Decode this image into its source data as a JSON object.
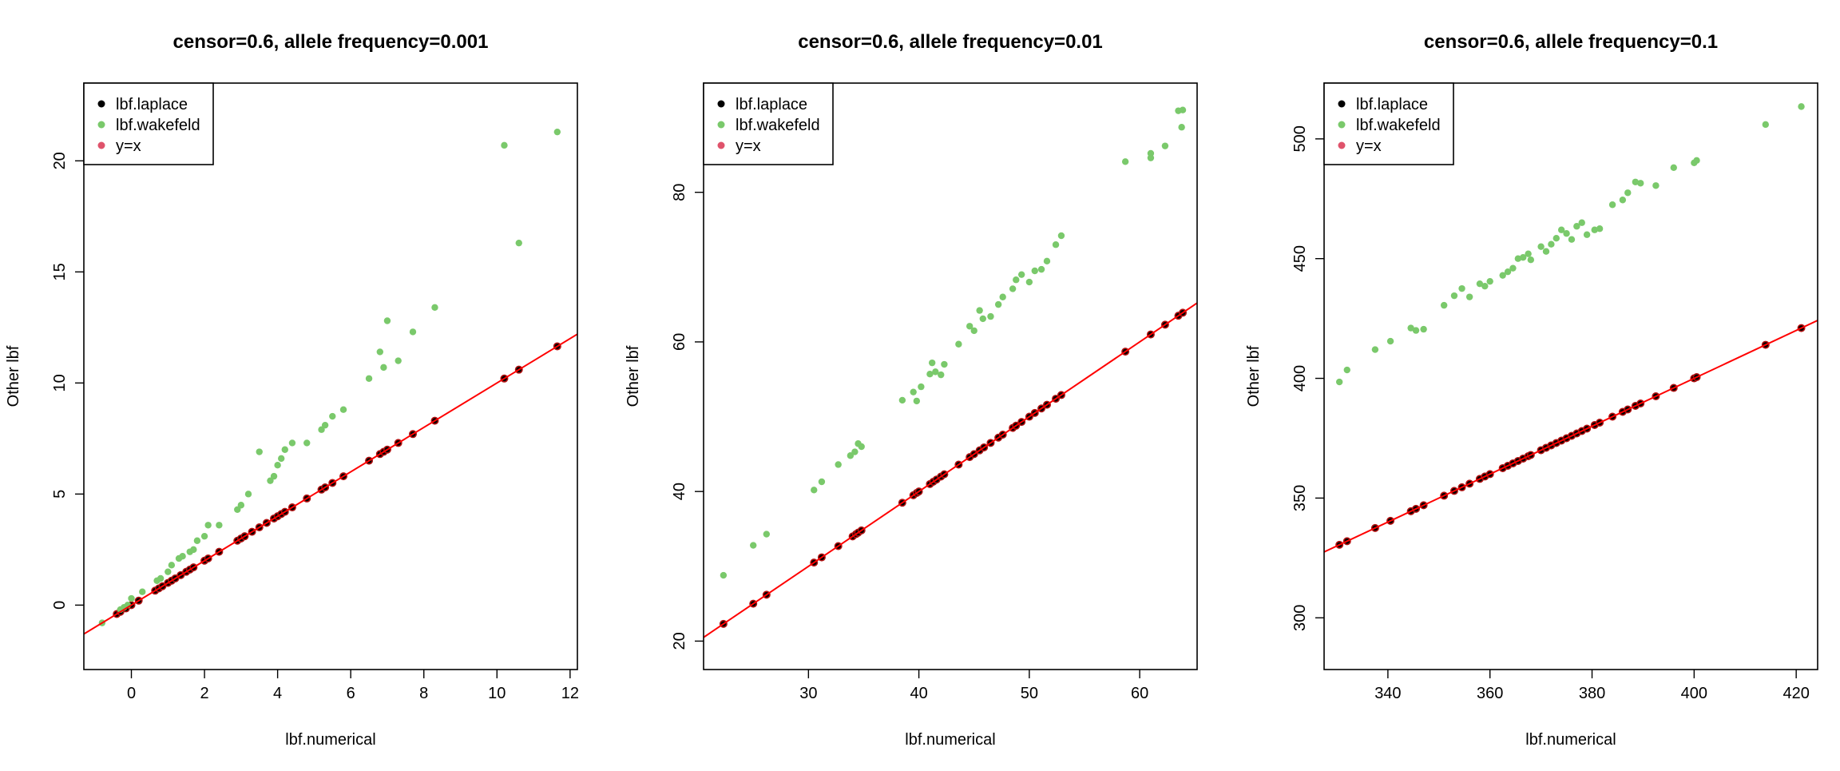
{
  "chart_data": [
    {
      "type": "scatter",
      "title": "censor=0.6, allele frequency=0.001",
      "xlabel": "lbf.numerical",
      "ylabel": "Other lbf",
      "xlim": [
        -1.3,
        12.2
      ],
      "ylim": [
        -2.9,
        23.5
      ],
      "xticks": [
        "0",
        "2",
        "4",
        "6",
        "8",
        "10",
        "12"
      ],
      "yticks": [
        "0",
        "5",
        "10",
        "15",
        "20"
      ],
      "legend": {
        "position": "top-left",
        "entries": [
          "lbf.laplace",
          "lbf.wakefeld",
          "y=x"
        ]
      },
      "line": {
        "name": "y=x",
        "slope": 1,
        "intercept": 0,
        "color": "#ff0000"
      },
      "series": [
        {
          "name": "lbf.laplace",
          "color": "#000000",
          "x": [
            -0.4,
            -0.3,
            -0.15,
            0.0,
            0.2,
            0.65,
            0.75,
            0.85,
            1.0,
            1.1,
            1.2,
            1.35,
            1.5,
            1.6,
            1.7,
            2.0,
            2.1,
            2.4,
            2.9,
            3.0,
            3.1,
            3.3,
            3.5,
            3.7,
            3.9,
            4.0,
            4.1,
            4.2,
            4.4,
            4.8,
            5.2,
            5.3,
            5.5,
            5.8,
            6.5,
            6.8,
            6.9,
            7.0,
            7.3,
            7.7,
            8.3,
            10.2,
            10.6,
            11.65
          ],
          "y": [
            -0.4,
            -0.3,
            -0.15,
            0.0,
            0.2,
            0.65,
            0.75,
            0.85,
            1.0,
            1.1,
            1.2,
            1.35,
            1.5,
            1.6,
            1.7,
            2.0,
            2.1,
            2.4,
            2.9,
            3.0,
            3.1,
            3.3,
            3.5,
            3.7,
            3.9,
            4.0,
            4.1,
            4.2,
            4.4,
            4.8,
            5.2,
            5.3,
            5.5,
            5.8,
            6.5,
            6.8,
            6.9,
            7.0,
            7.3,
            7.7,
            8.3,
            10.2,
            10.6,
            11.65
          ]
        },
        {
          "name": "lbf.wakefeld",
          "color": "#7ac96b",
          "x": [
            -0.8,
            -0.3,
            -0.2,
            -0.1,
            0.0,
            0.3,
            0.7,
            0.8,
            1.0,
            1.1,
            1.3,
            1.4,
            1.6,
            1.7,
            1.8,
            2.0,
            2.1,
            2.4,
            2.9,
            3.0,
            3.2,
            3.5,
            3.8,
            3.9,
            4.0,
            4.1,
            4.2,
            4.4,
            4.8,
            5.2,
            5.3,
            5.5,
            5.8,
            6.5,
            6.8,
            6.9,
            7.0,
            7.3,
            7.7,
            8.3,
            10.2,
            10.6,
            11.65
          ],
          "y": [
            -0.8,
            -0.2,
            -0.1,
            0.0,
            0.3,
            0.6,
            1.1,
            1.2,
            1.5,
            1.8,
            2.1,
            2.2,
            2.4,
            2.5,
            2.9,
            3.1,
            3.6,
            3.6,
            4.3,
            4.5,
            5.0,
            6.9,
            5.6,
            5.8,
            6.3,
            6.6,
            7.0,
            7.3,
            7.3,
            7.9,
            8.1,
            8.5,
            8.8,
            10.2,
            11.4,
            10.7,
            12.8,
            11.0,
            12.3,
            13.4,
            20.7,
            16.3,
            21.3
          ]
        }
      ]
    },
    {
      "type": "scatter",
      "title": "censor=0.6, allele frequency=0.01",
      "xlabel": "lbf.numerical",
      "ylabel": "Other lbf",
      "xlim": [
        20.5,
        65.2
      ],
      "ylim": [
        16.2,
        94.6
      ],
      "xticks": [
        "30",
        "40",
        "50",
        "60"
      ],
      "yticks": [
        "20",
        "40",
        "60",
        "80"
      ],
      "legend": {
        "position": "top-left",
        "entries": [
          "lbf.laplace",
          "lbf.wakefeld",
          "y=x"
        ]
      },
      "line": {
        "name": "y=x",
        "slope": 1,
        "intercept": 0,
        "color": "#ff0000"
      },
      "series": [
        {
          "name": "lbf.laplace",
          "color": "#000000",
          "x": [
            22.3,
            25.0,
            26.2,
            30.5,
            31.2,
            32.7,
            34.0,
            34.3,
            34.5,
            34.8,
            38.5,
            39.5,
            39.8,
            40.0,
            41.0,
            41.3,
            41.6,
            42.0,
            42.3,
            43.6,
            44.6,
            45.0,
            45.5,
            45.9,
            46.5,
            47.2,
            47.6,
            48.5,
            48.8,
            49.3,
            50.0,
            50.5,
            51.1,
            51.6,
            52.4,
            52.9,
            58.7,
            61.0,
            62.3,
            63.5,
            63.9
          ],
          "y": [
            22.3,
            25.0,
            26.2,
            30.5,
            31.2,
            32.7,
            34.0,
            34.3,
            34.5,
            34.8,
            38.5,
            39.5,
            39.8,
            40.0,
            41.0,
            41.3,
            41.6,
            42.0,
            42.3,
            43.6,
            44.6,
            45.0,
            45.5,
            45.9,
            46.5,
            47.2,
            47.6,
            48.5,
            48.8,
            49.3,
            50.0,
            50.5,
            51.1,
            51.6,
            52.4,
            52.9,
            58.7,
            61.0,
            62.3,
            63.5,
            63.9
          ]
        },
        {
          "name": "lbf.wakefeld",
          "color": "#7ac96b",
          "x": [
            22.3,
            25.0,
            26.2,
            30.5,
            31.2,
            32.7,
            33.8,
            34.2,
            34.5,
            34.8,
            38.5,
            39.5,
            39.8,
            40.2,
            41.0,
            41.2,
            41.5,
            42.0,
            42.3,
            43.6,
            44.6,
            45.0,
            45.5,
            45.8,
            46.5,
            47.2,
            47.6,
            48.5,
            48.8,
            49.3,
            50.0,
            50.5,
            51.1,
            51.6,
            52.4,
            52.9,
            58.7,
            61.0,
            61.0,
            62.3,
            63.5,
            63.8,
            63.9
          ],
          "y": [
            28.8,
            32.8,
            34.3,
            40.2,
            41.3,
            43.6,
            44.8,
            45.3,
            46.4,
            46.0,
            52.2,
            53.3,
            52.1,
            54.0,
            55.7,
            57.2,
            56.0,
            55.6,
            57.0,
            59.7,
            62.1,
            61.5,
            64.2,
            63.1,
            63.4,
            65.0,
            66.0,
            67.1,
            68.3,
            69.0,
            68.0,
            69.5,
            69.7,
            70.8,
            73.0,
            74.2,
            84.1,
            84.6,
            85.2,
            86.2,
            90.9,
            88.7,
            91.0
          ]
        }
      ]
    },
    {
      "type": "scatter",
      "title": "censor=0.6, allele frequency=0.1",
      "xlabel": "lbf.numerical",
      "ylabel": "Other lbf",
      "xlim": [
        327.5,
        424.2
      ],
      "ylim": [
        278.4,
        523.3
      ],
      "xticks": [
        "340",
        "360",
        "380",
        "400",
        "420"
      ],
      "yticks": [
        "300",
        "350",
        "400",
        "450",
        "500"
      ],
      "legend": {
        "position": "top-left",
        "entries": [
          "lbf.laplace",
          "lbf.wakefeld",
          "y=x"
        ]
      },
      "line": {
        "name": "y=x",
        "slope": 1,
        "intercept": 0,
        "color": "#ff0000"
      },
      "series": [
        {
          "name": "lbf.laplace",
          "color": "#000000",
          "x": [
            330.5,
            332.0,
            337.5,
            340.5,
            344.5,
            345.5,
            347.0,
            351.0,
            353.0,
            354.5,
            356.0,
            358.0,
            359.0,
            360.0,
            362.5,
            363.5,
            364.5,
            365.5,
            366.5,
            367.5,
            368.0,
            370.0,
            371.0,
            372.0,
            373.0,
            374.0,
            375.0,
            376.0,
            377.0,
            378.0,
            379.0,
            380.5,
            381.5,
            384.0,
            386.0,
            387.0,
            388.5,
            389.5,
            392.5,
            396.0,
            400.0,
            400.5,
            414.0,
            421.0
          ],
          "y": [
            330.5,
            332.0,
            337.5,
            340.5,
            344.5,
            345.5,
            347.0,
            351.0,
            353.0,
            354.5,
            356.0,
            358.0,
            359.0,
            360.0,
            362.5,
            363.5,
            364.5,
            365.5,
            366.5,
            367.5,
            368.0,
            370.0,
            371.0,
            372.0,
            373.0,
            374.0,
            375.0,
            376.0,
            377.0,
            378.0,
            379.0,
            380.5,
            381.5,
            384.0,
            386.0,
            387.0,
            388.5,
            389.5,
            392.5,
            396.0,
            400.0,
            400.5,
            414.0,
            421.0
          ]
        },
        {
          "name": "lbf.wakefeld",
          "color": "#7ac96b",
          "x": [
            330.5,
            332.0,
            337.5,
            340.5,
            344.5,
            345.5,
            347.0,
            351.0,
            353.0,
            354.5,
            356.0,
            358.0,
            359.0,
            360.0,
            362.5,
            363.5,
            364.5,
            365.5,
            366.5,
            367.5,
            368.0,
            370.0,
            371.0,
            372.0,
            373.0,
            374.0,
            375.0,
            376.0,
            377.0,
            378.0,
            379.0,
            380.5,
            381.5,
            384.0,
            386.0,
            387.0,
            388.5,
            389.5,
            392.5,
            396.0,
            400.0,
            400.5,
            414.0,
            421.0
          ],
          "y": [
            398.5,
            403.5,
            412.0,
            415.5,
            421.0,
            420.0,
            420.5,
            430.5,
            434.5,
            437.5,
            434.0,
            439.5,
            438.5,
            440.5,
            443.0,
            444.5,
            446.0,
            450.0,
            450.5,
            452.0,
            449.5,
            455.0,
            453.0,
            456.0,
            458.5,
            462.0,
            460.5,
            458.0,
            463.5,
            465.0,
            460.0,
            462.0,
            462.5,
            472.5,
            474.5,
            477.5,
            482.0,
            481.5,
            480.5,
            488.0,
            490.0,
            491.0,
            506.0,
            513.5
          ]
        }
      ]
    }
  ]
}
